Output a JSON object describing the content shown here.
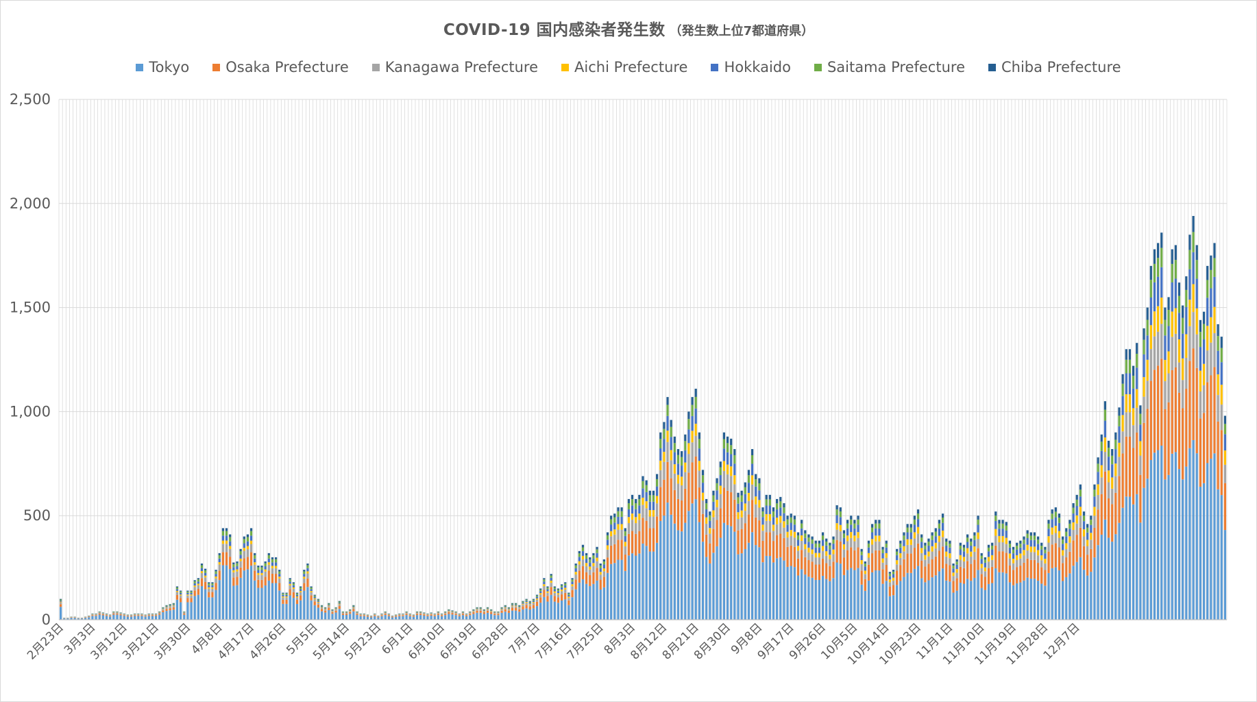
{
  "chart_data": {
    "type": "bar",
    "stacked": true,
    "title": "COVID-19 国内感染者発生数",
    "subtitle": "（発生数上位7都道府県）",
    "legend_position": "top",
    "grid": true,
    "ylim": [
      0,
      2500
    ],
    "y_ticks": [
      "0",
      "500",
      "1,000",
      "1,500",
      "2,000",
      "2,500"
    ],
    "x_tick_labels": [
      "2月23日",
      "3月3日",
      "3月12日",
      "3月21日",
      "3月30日",
      "4月8日",
      "4月17日",
      "4月26日",
      "5月5日",
      "5月14日",
      "5月23日",
      "6月1日",
      "6月10日",
      "6月19日",
      "6月28日",
      "7月7日",
      "7月16日",
      "7月25日",
      "8月3日",
      "8月12日",
      "8月21日",
      "8月30日",
      "9月8日",
      "9月17日",
      "9月26日",
      "10月5日",
      "10月14日",
      "10月23日",
      "11月1日",
      "11月10日",
      "11月19日",
      "11月28日",
      "12月7日"
    ],
    "x_tick_every": 9,
    "series": [
      {
        "name": "Tokyo",
        "color": "#5b9bd5",
        "share": [
          0.62,
          0.44
        ]
      },
      {
        "name": "Osaka Prefecture",
        "color": "#ed7d31",
        "share": [
          0.13,
          0.23
        ]
      },
      {
        "name": "Kanagawa Prefecture",
        "color": "#a5a5a5",
        "share": [
          0.09,
          0.09
        ]
      },
      {
        "name": "Aichi Prefecture",
        "color": "#ffc000",
        "share": [
          0.03,
          0.07
        ]
      },
      {
        "name": "Hokkaido",
        "color": "#4472c4",
        "share": [
          0.05,
          0.08
        ]
      },
      {
        "name": "Saitama Prefecture",
        "color": "#70ad47",
        "share": [
          0.05,
          0.05
        ]
      },
      {
        "name": "Chiba Prefecture",
        "color": "#255e91",
        "share": [
          0.03,
          0.04
        ]
      }
    ],
    "daily_totals": [
      100,
      10,
      10,
      15,
      15,
      10,
      10,
      15,
      20,
      30,
      30,
      40,
      35,
      30,
      25,
      40,
      40,
      35,
      30,
      25,
      25,
      30,
      30,
      30,
      25,
      30,
      30,
      30,
      40,
      60,
      70,
      75,
      80,
      160,
      140,
      40,
      140,
      140,
      190,
      200,
      270,
      245,
      180,
      180,
      240,
      320,
      440,
      440,
      410,
      275,
      280,
      340,
      400,
      410,
      440,
      320,
      260,
      260,
      280,
      320,
      300,
      300,
      240,
      130,
      130,
      200,
      180,
      130,
      160,
      240,
      270,
      160,
      120,
      100,
      70,
      60,
      80,
      50,
      60,
      90,
      40,
      40,
      50,
      70,
      40,
      30,
      30,
      25,
      20,
      30,
      20,
      30,
      40,
      30,
      20,
      25,
      30,
      30,
      40,
      30,
      25,
      40,
      40,
      35,
      30,
      35,
      30,
      40,
      30,
      40,
      50,
      45,
      40,
      30,
      40,
      30,
      40,
      50,
      60,
      60,
      50,
      60,
      50,
      40,
      40,
      60,
      70,
      60,
      80,
      80,
      70,
      90,
      100,
      90,
      100,
      120,
      150,
      200,
      160,
      220,
      160,
      150,
      170,
      180,
      130,
      200,
      270,
      330,
      360,
      320,
      300,
      320,
      350,
      270,
      290,
      420,
      500,
      510,
      540,
      540,
      440,
      580,
      600,
      580,
      600,
      690,
      670,
      620,
      620,
      700,
      900,
      950,
      1070,
      960,
      880,
      820,
      810,
      890,
      1000,
      1070,
      1110,
      900,
      720,
      580,
      520,
      620,
      680,
      760,
      900,
      880,
      870,
      820,
      610,
      620,
      660,
      720,
      820,
      700,
      680,
      540,
      600,
      600,
      540,
      580,
      590,
      560,
      500,
      510,
      500,
      420,
      480,
      430,
      410,
      400,
      380,
      380,
      420,
      390,
      370,
      400,
      550,
      540,
      430,
      480,
      500,
      480,
      500,
      340,
      280,
      380,
      460,
      480,
      480,
      350,
      380,
      230,
      240,
      340,
      380,
      420,
      460,
      460,
      500,
      530,
      410,
      370,
      390,
      420,
      440,
      480,
      510,
      390,
      380,
      270,
      290,
      370,
      360,
      410,
      390,
      420,
      500,
      320,
      300,
      360,
      370,
      520,
      480,
      480,
      470,
      380,
      350,
      370,
      380,
      400,
      430,
      420,
      420,
      400,
      370,
      350,
      480,
      530,
      540,
      510,
      400,
      440,
      480,
      560,
      600,
      650,
      520,
      460,
      500,
      650,
      780,
      890,
      1050,
      860,
      820,
      900,
      1020,
      1180,
      1300,
      1300,
      1220,
      1330,
      1030,
      1400,
      1500,
      1700,
      1780,
      1810,
      1860,
      1500,
      1550,
      1780,
      1800,
      1620,
      1510,
      1650,
      1850,
      1940,
      1800,
      1440,
      1480,
      1700,
      1750,
      1810,
      1420,
      1360,
      980
    ]
  }
}
